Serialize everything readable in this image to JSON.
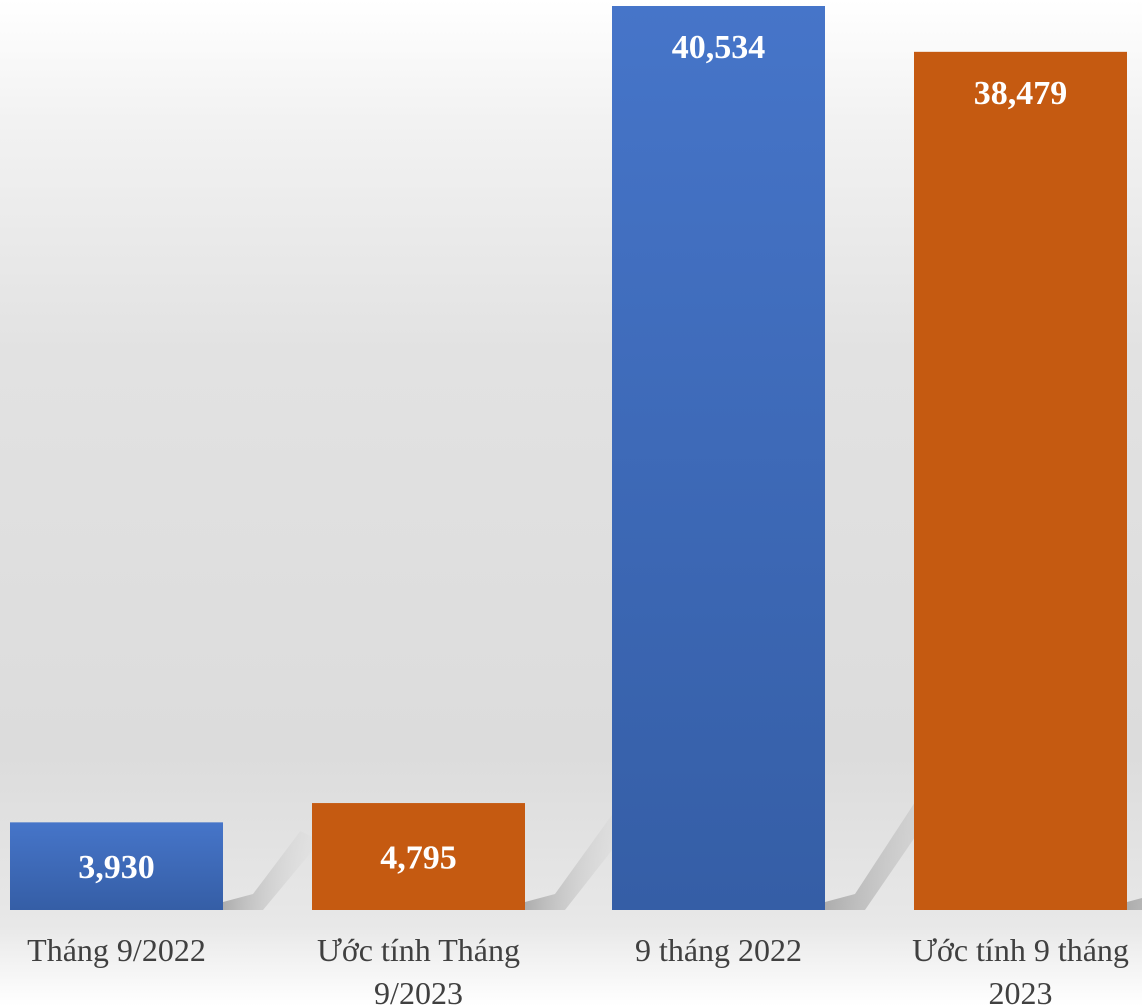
{
  "chart_data": {
    "type": "bar",
    "categories": [
      [
        "Tháng 9/2022"
      ],
      [
        "Ước tính Tháng",
        "9/2023"
      ],
      [
        "9 tháng 2022"
      ],
      [
        "Ước tính 9 tháng",
        "2023"
      ]
    ],
    "values": [
      3930,
      4795,
      40534,
      38479
    ],
    "value_labels": [
      "3,930",
      "4,795",
      "40,534",
      "38,479"
    ],
    "bar_colors": [
      "#4472c4",
      "#c55a11",
      "#4472c4",
      "#c55a11"
    ],
    "ylim": [
      0,
      40534
    ],
    "grid": false,
    "legend": "none",
    "title": "",
    "xlabel": "",
    "ylabel": ""
  }
}
